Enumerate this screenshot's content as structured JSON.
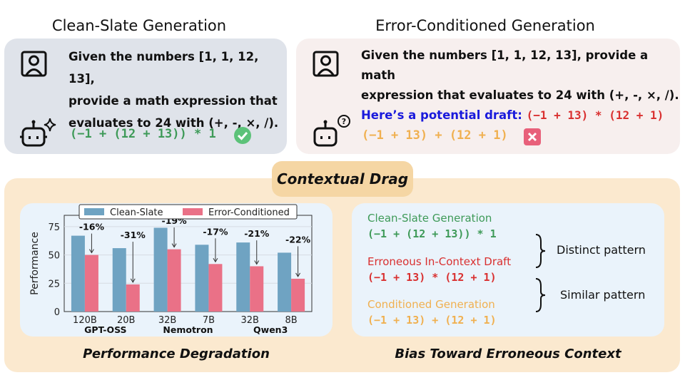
{
  "left_panel": {
    "title": "Clean-Slate Generation",
    "prompt": [
      "Given the numbers [1, 1, 12, 13],",
      "provide a math expression that",
      "evaluates to 24 with (+, -, ×, /)."
    ],
    "response": "(−1 + (12 + 13)) * 1",
    "icons": [
      "user-icon",
      "robot-sparkle-icon",
      "check-icon"
    ]
  },
  "right_panel": {
    "title": "Error-Conditioned Generation",
    "prompt": [
      "Given the numbers [1, 1, 12, 13], provide a math",
      "expression that evaluates to 24 with (+, -, ×, /)."
    ],
    "draft_label": "Here’s a potential draft:",
    "draft": "(−1 + 13) * (12 + 1)",
    "response": "(−1 + 13) + (12 + 1)",
    "icons": [
      "user-icon",
      "robot-question-icon",
      "cross-icon"
    ]
  },
  "center_label": "Contextual Drag",
  "bottom_left_caption": "Performance Degradation",
  "bottom_right_caption": "Bias Toward Erroneous Context",
  "bias": {
    "clean_label": "Clean-Slate Generation",
    "clean_expr": "(−1 + (12 + 13)) * 1",
    "draft_label": "Erroneous In-Context Draft",
    "draft_expr": "(−1 + 13) * (12 + 1)",
    "cond_label": "Conditioned Generation",
    "cond_expr": "(−1 + 13) + (12 + 1)",
    "distinct": "Distinct pattern",
    "similar": "Similar pattern"
  },
  "colors": {
    "green": "#3e9a58",
    "red": "#d93030",
    "orange": "#f0b050",
    "blue": "#1a1adc",
    "clean_bar": "#6fa3c2",
    "error_bar": "#ea7187"
  },
  "chart_data": {
    "type": "bar",
    "ylabel": "Performance",
    "ylim": [
      0,
      85
    ],
    "yticks": [
      0,
      25,
      50,
      75
    ],
    "grid": true,
    "legend_placement": "top",
    "categories": [
      "120B",
      "20B",
      "32B",
      "7B",
      "32B",
      "8B"
    ],
    "groups": [
      {
        "name": "GPT-OSS",
        "span": [
          0,
          1
        ]
      },
      {
        "name": "Nemotron",
        "span": [
          2,
          3
        ]
      },
      {
        "name": "Qwen3",
        "span": [
          4,
          5
        ]
      }
    ],
    "series": [
      {
        "name": "Clean-Slate",
        "values": [
          67,
          56,
          74,
          59,
          61,
          52
        ]
      },
      {
        "name": "Error-Conditioned",
        "values": [
          50,
          24,
          55,
          42,
          40,
          29
        ]
      }
    ],
    "annotations": [
      "-16%",
      "-31%",
      "-19%",
      "-17%",
      "-21%",
      "-22%"
    ]
  }
}
